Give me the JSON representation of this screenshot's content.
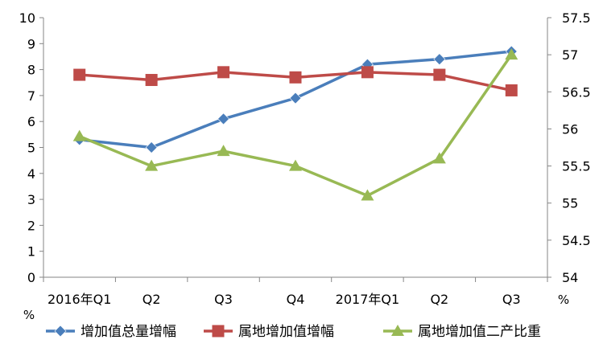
{
  "chart_data": {
    "type": "line",
    "categories": [
      "2016年Q1",
      "Q2",
      "Q3",
      "Q4",
      "2017年Q1",
      "Q2",
      "Q3"
    ],
    "y_left": {
      "ticks": [
        0,
        1,
        2,
        3,
        4,
        5,
        6,
        7,
        8,
        9,
        10
      ],
      "ylim": [
        0,
        10
      ],
      "unit": "%"
    },
    "y_right": {
      "ticks": [
        "54",
        "54.5",
        "55",
        "55.5",
        "56",
        "56.5",
        "57",
        "57.5"
      ],
      "ylim": [
        54,
        57.5
      ],
      "unit": "%"
    },
    "grid": false,
    "legend_position": "bottom",
    "series": [
      {
        "name": "增加值总量增幅",
        "axis": "left",
        "color": "#4a7ebb",
        "marker": "diamond",
        "values": [
          5.3,
          5.0,
          6.1,
          6.9,
          8.2,
          8.4,
          8.7
        ]
      },
      {
        "name": "属地增加值增幅",
        "axis": "left",
        "color": "#be4b48",
        "marker": "square",
        "values": [
          7.8,
          7.6,
          7.9,
          7.7,
          7.9,
          7.8,
          7.2
        ]
      },
      {
        "name": "属地增加值二产比重",
        "axis": "right",
        "color": "#98b954",
        "marker": "triangle",
        "values": [
          55.9,
          55.5,
          55.7,
          55.5,
          55.1,
          55.6,
          57.0
        ]
      }
    ]
  }
}
